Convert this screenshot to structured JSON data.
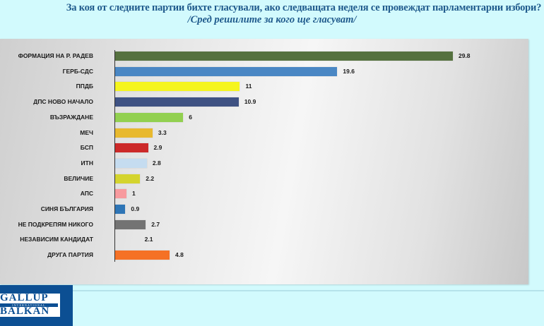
{
  "header": {
    "title_line1": "За коя от следните партии бихте  гласували,  ако следващата неделя се провеждат парламентарни избори?",
    "title_line2": "/Сред решилите за кого ще гласуват/"
  },
  "footer": {
    "logo_top": "GALLUP",
    "logo_middle": "INTERNATIONAL",
    "logo_bottom": "BALKAN"
  },
  "chart_data": {
    "type": "bar",
    "orientation": "horizontal",
    "title": "За коя от следните партии бихте гласували, ако следващата неделя се провеждат парламентарни избори?",
    "subtitle": "/Сред решилите за кого ще гласуват/",
    "xlabel": "",
    "ylabel": "",
    "grid": false,
    "legend": "none",
    "xlim": [
      0,
      30
    ],
    "categories": [
      "ФОРМАЦИЯ НА Р. РАДЕВ",
      "ГЕРБ-СДС",
      "ППДБ",
      "ДПС НОВО НАЧАЛО",
      "ВЪЗРАЖДАНЕ",
      "МЕЧ",
      "БСП",
      "ИТН",
      "ВЕЛИЧИЕ",
      "АПС",
      "СИНЯ БЪЛГАРИЯ",
      "НЕ ПОДКРЕПЯМ НИКОГО",
      "НЕЗАВИСИМ КАНДИДАТ",
      "ДРУГА ПАРТИЯ"
    ],
    "values": [
      29.8,
      19.6,
      11,
      10.9,
      6,
      3.3,
      2.9,
      2.8,
      2.2,
      1,
      0.9,
      2.7,
      2.1,
      4.8
    ],
    "value_labels": [
      "29.8",
      "19.6",
      "11",
      "10.9",
      "6",
      "3.3",
      "2.9",
      "2.8",
      "2.2",
      "1",
      "0.9",
      "2.7",
      "2.1",
      "4.8"
    ],
    "colors": [
      "#55713f",
      "#4a87c4",
      "#f5f51e",
      "#3f5283",
      "#92d050",
      "#e8b92e",
      "#cc2929",
      "#c5dcf0",
      "#d4d42e",
      "#f79a9e",
      "#2e75b6",
      "#737373",
      "#ffffff",
      "#f57125"
    ]
  }
}
